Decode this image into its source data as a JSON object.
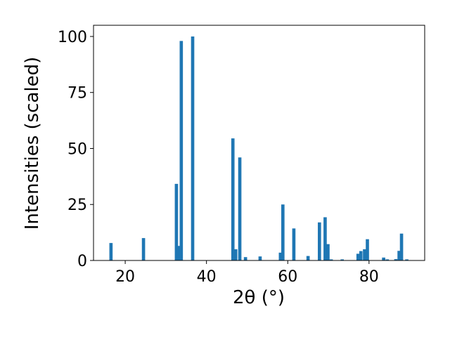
{
  "chart_data": {
    "type": "bar",
    "x_label": "2θ (°)",
    "y_label": "Intensities (scaled)",
    "color": "#1f77b4",
    "x": [
      16.5,
      24.5,
      32.6,
      33.2,
      33.8,
      36.6,
      46.5,
      47.2,
      48.2,
      49.6,
      53.2,
      58.2,
      58.8,
      61.5,
      65.0,
      67.8,
      69.2,
      69.9,
      70.7,
      73.4,
      77.3,
      78.0,
      78.9,
      79.6,
      83.6,
      84.5,
      86.6,
      87.4,
      88.0,
      89.3
    ],
    "values": [
      7.8,
      10,
      34.2,
      6.5,
      98,
      100,
      54.5,
      5,
      46,
      1.5,
      1.8,
      3.5,
      25,
      14.3,
      2,
      17,
      19.3,
      7.3,
      0.5,
      0.5,
      3,
      4.2,
      5,
      9.5,
      1.3,
      0.5,
      0.6,
      4.3,
      12,
      0.5
    ],
    "xlim": [
      12.2,
      93.7
    ],
    "ylim": [
      0,
      105
    ],
    "xticks": [
      20,
      40,
      60,
      80
    ],
    "yticks": [
      0,
      25,
      50,
      75,
      100
    ]
  }
}
